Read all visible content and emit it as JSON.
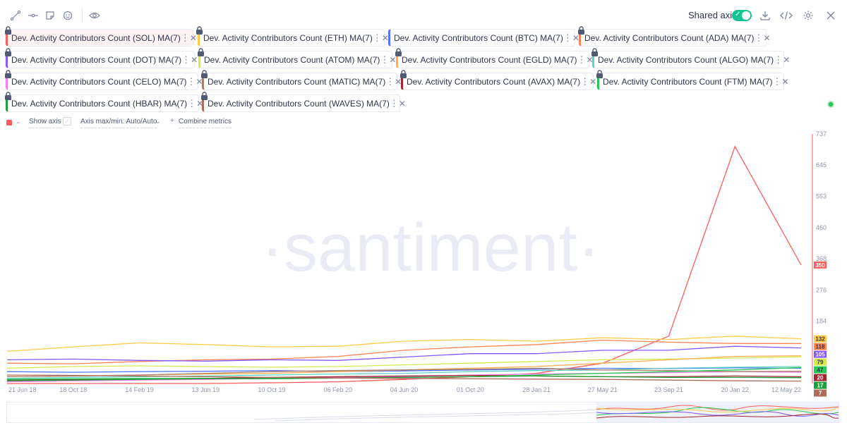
{
  "toolbar": {
    "icons": [
      "line-tool-icon",
      "horizontal-ray-icon",
      "sticky-note-icon",
      "emoji-icon",
      "eye-icon"
    ],
    "shared_axis_label": "Shared axis",
    "shared_axis_on": true,
    "right_icons": [
      "download-icon",
      "embed-code-icon",
      "settings-icon",
      "close-icon"
    ]
  },
  "metrics": [
    {
      "label": "Dev. Activity Contributors Count (SOL) MA(7)",
      "color": "#ff5b5b",
      "active": true
    },
    {
      "label": "Dev. Activity Contributors Count (ETH) MA(7)",
      "color": "#ffcb47"
    },
    {
      "label": "Dev. Activity Contributors Count (BTC) MA(7)",
      "color": "#5275ff"
    },
    {
      "label": "Dev. Activity Contributors Count (ADA) MA(7)",
      "color": "#ff8450"
    },
    {
      "label": "Dev. Activity Contributors Count (DOT) MA(7)",
      "color": "#8358ff"
    },
    {
      "label": "Dev. Activity Contributors Count (ATOM) MA(7)",
      "color": "#d5e84f"
    },
    {
      "label": "Dev. Activity Contributors Count (EGLD) MA(7)",
      "color": "#ffad4d"
    },
    {
      "label": "Dev. Activity Contributors Count (ALGO) MA(7)",
      "color": "#5fd3c2"
    },
    {
      "label": "Dev. Activity Contributors Count (CELO) MA(7)",
      "color": "#f47bf7"
    },
    {
      "label": "Dev. Activity Contributors Count (MATIC) MA(7)",
      "color": "#a8816b"
    },
    {
      "label": "Dev. Activity Contributors Count (AVAX) MA(7)",
      "color": "#a1242f"
    },
    {
      "label": "Dev. Activity Contributors Count (FTM) MA(7)",
      "color": "#26c953"
    },
    {
      "label": "Dev. Activity Contributors Count (HBAR) MA(7)",
      "color": "#1d9e3a"
    },
    {
      "label": "Dev. Activity Contributors Count (WAVES) MA(7)",
      "color": "#b06b5a"
    }
  ],
  "controls": {
    "show_axis": "Show axis",
    "axis_maxmin": "Axis max/min: Auto/Auto",
    "combine": "Combine metrics"
  },
  "watermark": "·santiment·",
  "status_dot_color": "#26c953",
  "chart_data": {
    "type": "line",
    "x": [
      "21 Jun 18",
      "18 Oct 18",
      "14 Feb 19",
      "13 Jun 19",
      "10 Oct 19",
      "06 Feb 20",
      "04 Jun 20",
      "01 Oct 20",
      "28 Jan 21",
      "27 May 21",
      "23 Sep 21",
      "20 Jan 22",
      "12 May 22"
    ],
    "ylim": [
      0,
      737
    ],
    "y_ticks": [
      737,
      645,
      553,
      460,
      368,
      276,
      184
    ],
    "grid": false,
    "series": [
      {
        "name": "Dev. Activity Contributors Count (SOL) MA(7)",
        "color": "#ff5b5b",
        "values": [
          0,
          0,
          0,
          0,
          2,
          5,
          12,
          20,
          30,
          60,
          140,
          700,
          350
        ]
      },
      {
        "name": "Dev. Activity Contributors Count (ETH) MA(7)",
        "color": "#ffcb47",
        "values": [
          95,
          108,
          120,
          115,
          108,
          110,
          125,
          130,
          125,
          135,
          130,
          140,
          132
        ]
      },
      {
        "name": "Dev. Activity Contributors Count (BTC) MA(7)",
        "color": "#5275ff",
        "values": [
          35,
          33,
          35,
          36,
          38,
          35,
          37,
          40,
          42,
          45,
          44,
          46,
          45
        ]
      },
      {
        "name": "Dev. Activity Contributors Count (ADA) MA(7)",
        "color": "#ff8450",
        "values": [
          60,
          58,
          65,
          70,
          72,
          80,
          98,
          108,
          115,
          128,
          122,
          118,
          118
        ]
      },
      {
        "name": "Dev. Activity Contributors Count (DOT) MA(7)",
        "color": "#8358ff",
        "values": [
          70,
          72,
          68,
          66,
          70,
          68,
          78,
          88,
          88,
          98,
          98,
          110,
          105
        ]
      },
      {
        "name": "Dev. Activity Contributors Count (ATOM) MA(7)",
        "color": "#d5e84f",
        "values": [
          45,
          50,
          52,
          50,
          48,
          50,
          55,
          60,
          65,
          70,
          72,
          75,
          79
        ]
      },
      {
        "name": "Dev. Activity Contributors Count (EGLD) MA(7)",
        "color": "#ffad4d",
        "values": [
          20,
          22,
          25,
          28,
          30,
          35,
          40,
          45,
          50,
          60,
          70,
          80,
          82
        ]
      },
      {
        "name": "Dev. Activity Contributors Count (ALGO) MA(7)",
        "color": "#5fd3c2",
        "values": [
          15,
          18,
          20,
          22,
          25,
          28,
          30,
          35,
          38,
          40,
          45,
          48,
          50
        ]
      },
      {
        "name": "Dev. Activity Contributors Count (CELO) MA(7)",
        "color": "#f47bf7",
        "values": [
          5,
          8,
          10,
          12,
          15,
          18,
          20,
          25,
          28,
          30,
          32,
          35,
          33
        ]
      },
      {
        "name": "Dev. Activity Contributors Count (MATIC) MA(7)",
        "color": "#a8816b",
        "values": [
          20,
          22,
          25,
          30,
          35,
          38,
          40,
          42,
          45,
          40,
          38,
          35,
          36
        ]
      },
      {
        "name": "Dev. Activity Contributors Count (AVAX) MA(7)",
        "color": "#a1242f",
        "values": [
          10,
          12,
          14,
          15,
          18,
          20,
          22,
          24,
          22,
          20,
          20,
          22,
          20
        ]
      },
      {
        "name": "Dev. Activity Contributors Count (FTM) MA(7)",
        "color": "#26c953",
        "values": [
          12,
          14,
          15,
          15,
          14,
          16,
          18,
          20,
          25,
          30,
          35,
          40,
          47
        ]
      },
      {
        "name": "Dev. Activity Contributors Count (HBAR) MA(7)",
        "color": "#1d9e3a",
        "values": [
          8,
          10,
          12,
          14,
          15,
          16,
          18,
          20,
          22,
          20,
          18,
          18,
          17
        ]
      },
      {
        "name": "Dev. Activity Contributors Count (WAVES) MA(7)",
        "color": "#b06b5a",
        "values": [
          25,
          24,
          22,
          20,
          18,
          16,
          15,
          14,
          13,
          12,
          10,
          8,
          7
        ]
      }
    ],
    "last_value_badges": [
      {
        "value": "350",
        "color": "#ff5b5b",
        "text_color": "#ffffff"
      },
      {
        "value": "132",
        "color": "#ffcb47",
        "text_color": "#2f354d"
      },
      {
        "value": "118",
        "color": "#ff8450",
        "text_color": "#2f354d"
      },
      {
        "value": "105",
        "color": "#8358ff",
        "text_color": "#ffffff"
      },
      {
        "value": "79",
        "color": "#d5e84f",
        "text_color": "#2f354d"
      },
      {
        "value": "47",
        "color": "#26c953",
        "text_color": "#2f354d"
      },
      {
        "value": "20",
        "color": "#a1242f",
        "text_color": "#ffffff"
      },
      {
        "value": "17",
        "color": "#1d9e3a",
        "text_color": "#ffffff"
      },
      {
        "value": "7",
        "color": "#b06b5a",
        "text_color": "#ffffff"
      }
    ]
  }
}
